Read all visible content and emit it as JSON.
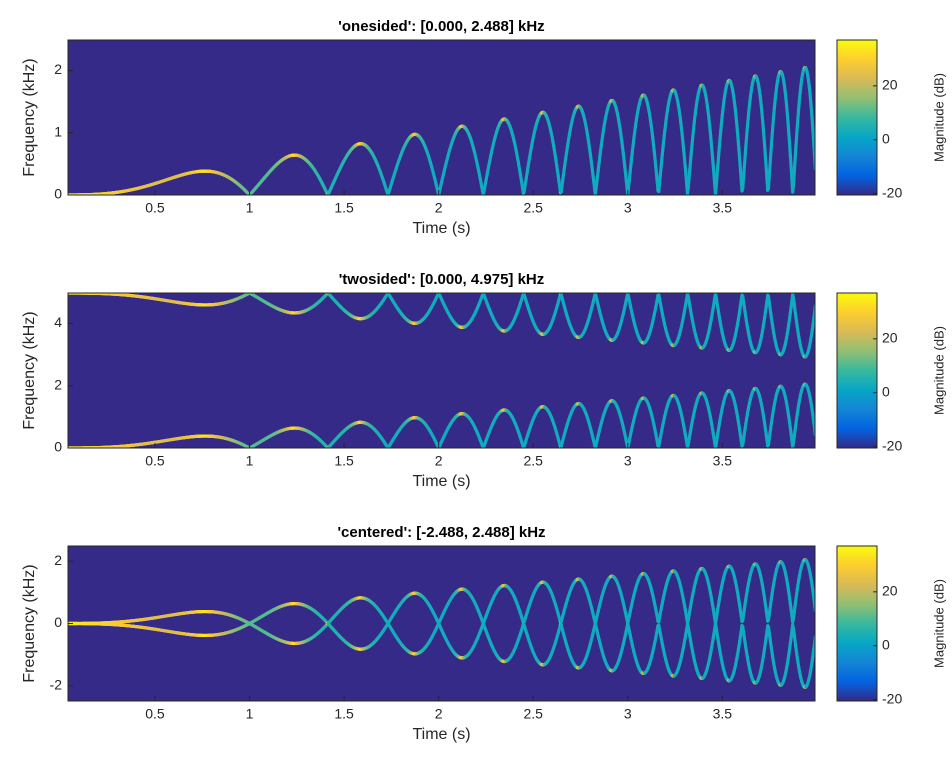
{
  "chart_data": [
    {
      "type": "spectrogram",
      "title": "'onesided': [0.000, 2.488] kHz",
      "xlabel": "Time (s)",
      "ylabel": "Frequency (kHz)",
      "colorbar_label": "Magnitude (dB)",
      "xlim": [
        0.04,
        3.99
      ],
      "xticks": [
        0.5,
        1,
        1.5,
        2,
        2.5,
        3,
        3.5
      ],
      "ylim": [
        0,
        2.488
      ],
      "yticks": [
        0,
        1,
        2
      ],
      "clim": [
        -20.5,
        37
      ],
      "cticks": [
        -20,
        0,
        20
      ],
      "colormap": [
        "#352a87",
        "#0363e1",
        "#1485d4",
        "#06a7c6",
        "#38b99e",
        "#92bf73",
        "#d9ba56",
        "#fcce2e",
        "#f9fb0e"
      ]
    },
    {
      "type": "spectrogram",
      "title": "'twosided': [0.000, 4.975] kHz",
      "xlabel": "Time (s)",
      "ylabel": "Frequency (kHz)",
      "colorbar_label": "Magnitude (dB)",
      "xlim": [
        0.04,
        3.99
      ],
      "xticks": [
        0.5,
        1,
        1.5,
        2,
        2.5,
        3,
        3.5
      ],
      "ylim": [
        0,
        4.975
      ],
      "yticks": [
        0,
        2,
        4
      ],
      "clim": [
        -20.5,
        37
      ],
      "cticks": [
        -20,
        0,
        20
      ],
      "colormap": [
        "#352a87",
        "#0363e1",
        "#1485d4",
        "#06a7c6",
        "#38b99e",
        "#92bf73",
        "#d9ba56",
        "#fcce2e",
        "#f9fb0e"
      ]
    },
    {
      "type": "spectrogram",
      "title": "'centered': [-2.488, 2.488] kHz",
      "xlabel": "Time (s)",
      "ylabel": "Frequency (kHz)",
      "colorbar_label": "Magnitude (dB)",
      "xlim": [
        0.04,
        3.99
      ],
      "xticks": [
        0.5,
        1,
        1.5,
        2,
        2.5,
        3,
        3.5
      ],
      "ylim": [
        -2.488,
        2.488
      ],
      "yticks": [
        -2,
        0,
        2
      ],
      "clim": [
        -20.5,
        37
      ],
      "cticks": [
        -20,
        0,
        20
      ],
      "colormap": [
        "#352a87",
        "#0363e1",
        "#1485d4",
        "#06a7c6",
        "#38b99e",
        "#92bf73",
        "#d9ba56",
        "#fcce2e",
        "#f9fb0e"
      ]
    }
  ]
}
